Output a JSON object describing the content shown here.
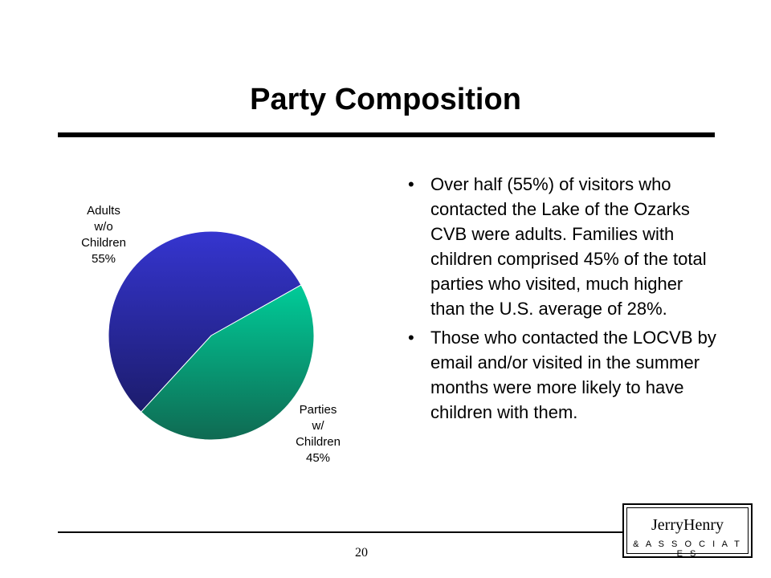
{
  "slide": {
    "title": "Party Composition",
    "page_number": "20"
  },
  "bullets": [
    "Over half (55%) of visitors who contacted the Lake of the Ozarks CVB were adults. Families with children comprised 45% of the total parties who visited, much higher than the U.S. average of 28%.",
    "Those who contacted the LOCVB by email and/or visited in the summer months were more likely to have children with them."
  ],
  "logo": {
    "name": "JerryHenry",
    "subtitle": "& A S S O C I A T E S"
  },
  "chart_data": {
    "type": "pie",
    "slices": [
      {
        "label": "Adults w/o Children",
        "label_lines": [
          "Adults",
          "w/o",
          "Children",
          "55%"
        ],
        "value": 55,
        "color_top": "#3535d0",
        "color_bottom": "#1c1c6c"
      },
      {
        "label": "Parties w/ Children",
        "label_lines": [
          "Parties",
          "w/",
          "Children",
          "45%"
        ],
        "value": 45,
        "color_top": "#00cc99",
        "color_bottom": "#0f6a52"
      }
    ],
    "title": "",
    "legend": "none"
  }
}
